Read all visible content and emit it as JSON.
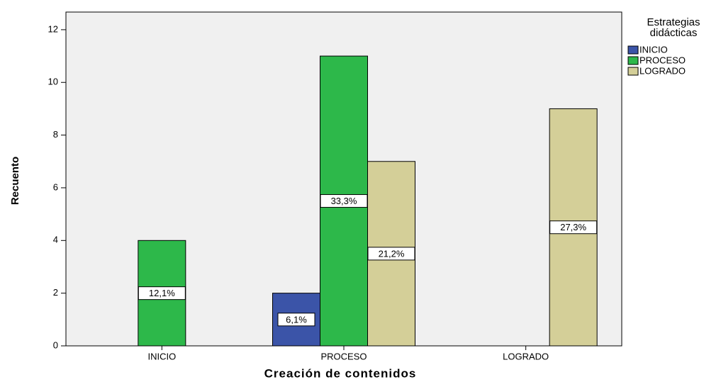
{
  "chart_data": {
    "type": "bar",
    "x_label": "Creación de contenidos",
    "y_label": "Recuento",
    "legend_title": [
      "Estrategias",
      "didácticas"
    ],
    "categories": [
      "INICIO",
      "PROCESO",
      "LOGRADO"
    ],
    "series": [
      {
        "name": "INICIO",
        "color": "#3b54a8",
        "values": [
          null,
          2,
          null
        ],
        "percentages": [
          null,
          6.1,
          null
        ],
        "percentage_labels": [
          null,
          "6,1%",
          null
        ]
      },
      {
        "name": "PROCESO",
        "color": "#2db84a",
        "values": [
          4,
          11,
          null
        ],
        "percentages": [
          12.1,
          33.3,
          null
        ],
        "percentage_labels": [
          "12,1%",
          "33,3%",
          null
        ]
      },
      {
        "name": "LOGRADO",
        "color": "#d4cf98",
        "values": [
          null,
          7,
          9
        ],
        "percentages": [
          null,
          21.2,
          27.3
        ],
        "percentage_labels": [
          null,
          "21,2%",
          "27,3%"
        ]
      }
    ],
    "ylim": [
      0,
      12.67
    ],
    "yticks": [
      0,
      2,
      4,
      6,
      8,
      10,
      12
    ],
    "grid": false,
    "legend": "right"
  }
}
